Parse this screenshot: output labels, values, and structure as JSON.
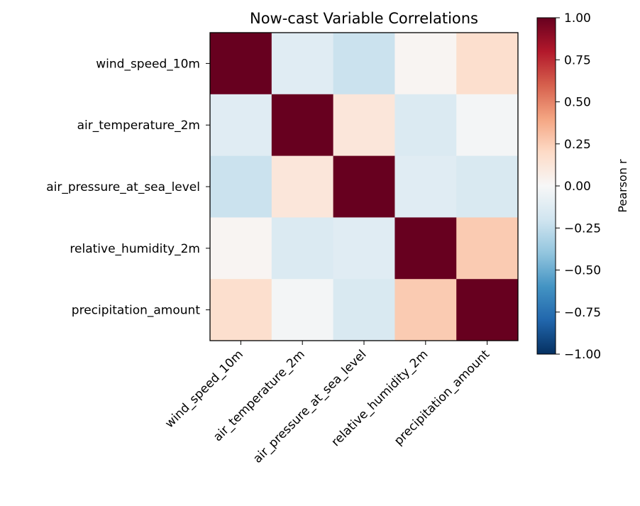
{
  "chart_data": {
    "type": "heatmap",
    "title": "Now-cast Variable Correlations",
    "xlabel": "",
    "ylabel": "",
    "row_labels": [
      "wind_speed_10m",
      "air_temperature_2m",
      "air_pressure_at_sea_level",
      "relative_humidity_2m",
      "precipitation_amount"
    ],
    "col_labels": [
      "wind_speed_10m",
      "air_temperature_2m",
      "air_pressure_at_sea_level",
      "relative_humidity_2m",
      "precipitation_amount"
    ],
    "values": [
      [
        1.0,
        -0.12,
        -0.22,
        0.02,
        0.17
      ],
      [
        -0.12,
        1.0,
        0.12,
        -0.15,
        -0.02
      ],
      [
        -0.22,
        0.12,
        1.0,
        -0.12,
        -0.16
      ],
      [
        0.02,
        -0.15,
        -0.12,
        1.0,
        0.26
      ],
      [
        0.17,
        -0.02,
        -0.16,
        0.26,
        1.0
      ]
    ],
    "colorbar": {
      "label": "Pearson r",
      "range": [
        -1.0,
        1.0
      ],
      "colormap": "RdBu_r",
      "ticks": [
        "1.00",
        "0.75",
        "0.50",
        "0.25",
        "0.00",
        "−0.25",
        "−0.50",
        "−0.75",
        "−1.00"
      ]
    },
    "grid": false
  }
}
